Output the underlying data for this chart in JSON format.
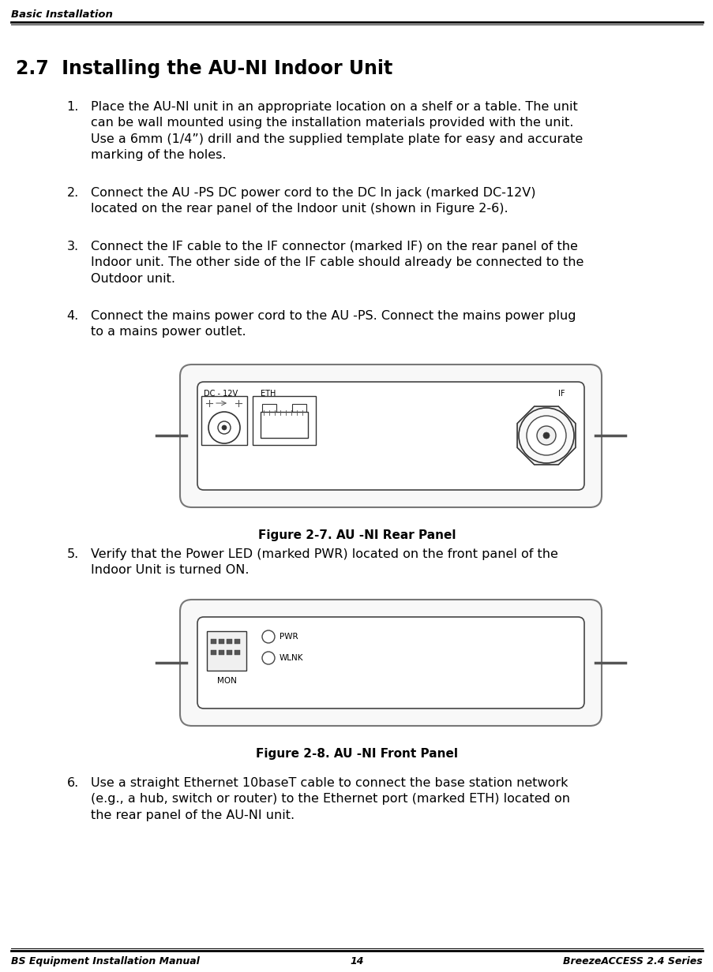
{
  "header_text": "Basic Installation",
  "footer_left": "BS Equipment Installation Manual",
  "footer_center": "14",
  "footer_right": "BreezeACCESS 2.4 Series",
  "section_title": "2.7  Installing the AU-NI Indoor Unit",
  "items": [
    {
      "num": "1.",
      "text": "Place the AU-NI unit in an appropriate location on a shelf or a table. The unit\ncan be wall mounted using the installation materials provided with the unit.\nUse a 6mm (1/4”) drill and the supplied template plate for easy and accurate\nmarking of the holes."
    },
    {
      "num": "2.",
      "text": "Connect the AU -PS DC power cord to the DC In jack (marked DC-12V)\nlocated on the rear panel of the Indoor unit (shown in Figure 2-6)."
    },
    {
      "num": "3.",
      "text": "Connect the IF cable to the IF connector (marked IF) on the rear panel of the\nIndoor unit. The other side of the IF cable should already be connected to the\nOutdoor unit."
    },
    {
      "num": "4.",
      "text": "Connect the mains power cord to the AU -PS. Connect the mains power plug\nto a mains power outlet."
    },
    {
      "num": "5.",
      "text": "Verify that the Power LED (marked PWR) located on the front panel of the\nIndoor Unit is turned ON."
    },
    {
      "num": "6.",
      "text": "Use a straight Ethernet 10baseT cable to connect the base station network\n(e.g., a hub, switch or router) to the Ethernet port (marked ETH) located on\nthe rear panel of the AU-NI unit."
    }
  ],
  "fig1_caption": "Figure 2-7. AU -NI Rear Panel",
  "fig2_caption": "Figure 2-8. AU -NI Front Panel",
  "bg_color": "#ffffff",
  "text_color": "#000000",
  "line_color": "#000000",
  "fig_edge_color": "#888888",
  "fig_bg_color": "#ffffff"
}
